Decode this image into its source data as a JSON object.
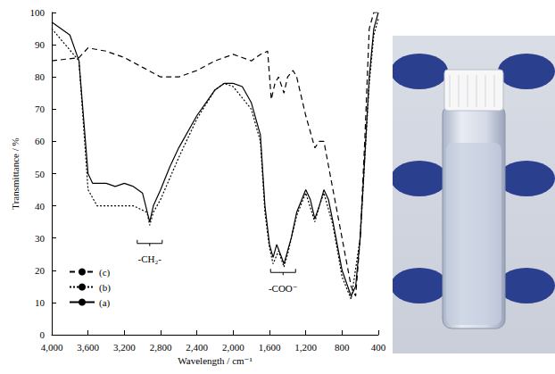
{
  "chart_data": {
    "type": "line",
    "xlabel": "Wavelength / cm⁻¹",
    "ylabel": "Transmittance / %",
    "xlim": [
      4000,
      400
    ],
    "xticks": [
      4000,
      3600,
      3200,
      2800,
      2400,
      2000,
      1600,
      1200,
      800,
      400
    ],
    "ylim": [
      0,
      100
    ],
    "yticks": [
      0,
      10,
      20,
      30,
      40,
      50,
      60,
      70,
      80,
      90,
      100
    ],
    "grid": false,
    "legend": "lower left",
    "annotations": [
      {
        "text": "-CH₂-",
        "x": 2920,
        "y": 25
      },
      {
        "text": "-COO⁻",
        "x": 1450,
        "y": 16
      }
    ],
    "series": [
      {
        "name": "(c)",
        "color": "#000000",
        "line_style": "dashed",
        "x": [
          4000,
          3700,
          3600,
          3400,
          3200,
          3000,
          2800,
          2600,
          2400,
          2200,
          2000,
          1900,
          1800,
          1700,
          1620,
          1580,
          1540,
          1500,
          1440,
          1400,
          1340,
          1300,
          1200,
          1100,
          1050,
          1000,
          900,
          800,
          700,
          650,
          600,
          550,
          500,
          450,
          400
        ],
        "values": [
          85,
          86,
          89,
          88,
          86,
          83,
          80,
          80,
          82,
          85,
          87,
          86,
          85,
          87,
          88,
          73,
          78,
          80,
          75,
          80,
          82,
          80,
          68,
          58,
          60,
          60,
          45,
          30,
          15,
          12,
          30,
          60,
          95,
          100,
          100
        ]
      },
      {
        "name": "(b)",
        "color": "#000000",
        "line_style": "dotted",
        "x": [
          4000,
          3700,
          3600,
          3500,
          3300,
          3100,
          2950,
          2920,
          2880,
          2800,
          2600,
          2400,
          2200,
          2100,
          2000,
          1800,
          1700,
          1650,
          1600,
          1560,
          1500,
          1440,
          1400,
          1300,
          1200,
          1100,
          1050,
          1000,
          900,
          800,
          700,
          600,
          500,
          450,
          400
        ],
        "values": [
          95,
          85,
          45,
          40,
          40,
          40,
          38,
          34,
          38,
          42,
          55,
          67,
          76,
          78,
          77,
          70,
          60,
          38,
          27,
          22,
          26,
          21,
          25,
          37,
          44,
          35,
          40,
          44,
          34,
          18,
          11,
          30,
          78,
          93,
          98
        ]
      },
      {
        "name": "(a)",
        "color": "#000000",
        "line_style": "solid",
        "x": [
          4000,
          3900,
          3800,
          3700,
          3600,
          3550,
          3400,
          3300,
          3200,
          3100,
          3000,
          2920,
          2880,
          2800,
          2700,
          2600,
          2400,
          2200,
          2100,
          2000,
          1900,
          1800,
          1700,
          1650,
          1600,
          1560,
          1520,
          1480,
          1440,
          1400,
          1360,
          1300,
          1200,
          1150,
          1100,
          1050,
          1000,
          950,
          900,
          800,
          700,
          650,
          600,
          550,
          500,
          450,
          400
        ],
        "values": [
          97,
          95,
          93,
          85,
          50,
          47,
          47,
          46,
          47,
          46,
          44,
          35,
          40,
          45,
          52,
          58,
          68,
          76,
          78,
          78,
          77,
          72,
          62,
          40,
          28,
          24,
          28,
          25,
          22,
          26,
          30,
          38,
          45,
          42,
          36,
          40,
          45,
          42,
          35,
          20,
          12,
          15,
          30,
          55,
          80,
          95,
          100
        ]
      }
    ]
  }
}
